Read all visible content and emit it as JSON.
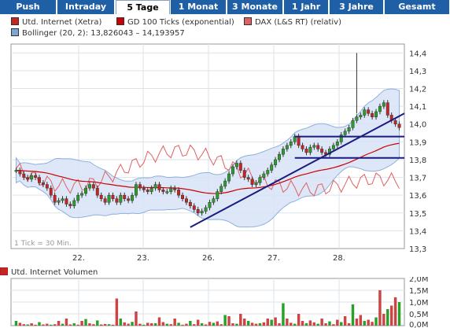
{
  "tabs": [
    {
      "label": "Push",
      "active": false
    },
    {
      "label": "Intraday",
      "active": false
    },
    {
      "label": "5 Tage",
      "active": true
    },
    {
      "label": "1 Monat",
      "active": false
    },
    {
      "label": "3 Monate",
      "active": false
    },
    {
      "label": "1 Jahr",
      "active": false
    },
    {
      "label": "3 Jahre",
      "active": false
    },
    {
      "label": "Gesamt",
      "active": false
    }
  ],
  "legend": {
    "items": [
      {
        "label": "Utd. Internet (Xetra)",
        "color": "#cc2222"
      },
      {
        "label": "GD 100 Ticks (exponential)",
        "color": "#cc0000"
      },
      {
        "label": "DAX (L&S RT) (relativ)",
        "color": "#e06060"
      },
      {
        "label": "Bollinger (20, 2): 13,826043 – 14,193957",
        "color": "#7da6d8"
      }
    ]
  },
  "chart_data": [
    {
      "type": "candlestick",
      "title": "",
      "x_tick_labels": [
        "22.",
        "23.",
        "26.",
        "27.",
        "28."
      ],
      "y_tick_labels": [
        "13,3",
        "13,4",
        "13,5",
        "13,6",
        "13,7",
        "13,8",
        "13,9",
        "14,0",
        "14,1",
        "14,2",
        "14,3",
        "14,4"
      ],
      "ylim": [
        13.3,
        14.45
      ],
      "annotation": "1 Tick = 30 Min.",
      "series": [
        {
          "name": "Utd. Internet (Xetra)",
          "values": [
            13.74,
            13.72,
            13.7,
            13.69,
            13.71,
            13.7,
            13.67,
            13.66,
            13.64,
            13.6,
            13.56,
            13.57,
            13.58,
            13.55,
            13.54,
            13.57,
            13.6,
            13.61,
            13.64,
            13.66,
            13.64,
            13.6,
            13.58,
            13.56,
            13.6,
            13.58,
            13.56,
            13.6,
            13.58,
            13.57,
            13.6,
            13.66,
            13.64,
            13.63,
            13.62,
            13.64,
            13.66,
            13.63,
            13.62,
            13.62,
            13.64,
            13.63,
            13.6,
            13.58,
            13.56,
            13.54,
            13.52,
            13.5,
            13.51,
            13.53,
            13.56,
            13.58,
            13.62,
            13.65,
            13.68,
            13.72,
            13.76,
            13.78,
            13.74,
            13.7,
            13.69,
            13.66,
            13.67,
            13.7,
            13.72,
            13.74,
            13.77,
            13.8,
            13.83,
            13.86,
            13.88,
            13.9,
            13.93,
            13.88,
            13.86,
            13.84,
            13.87,
            13.88,
            13.86,
            13.84,
            13.83,
            13.86,
            13.88,
            13.9,
            13.94,
            13.96,
            13.98,
            14.02,
            14.04,
            14.05,
            14.08,
            14.06,
            14.04,
            14.07,
            14.1,
            14.12,
            14.05,
            14.02,
            14.0,
            13.98
          ]
        },
        {
          "name": "GD 100 Ticks (exponential)",
          "values": [
            13.6,
            13.65
          ]
        },
        {
          "name": "DAX (L&S RT) (relativ)",
          "values": [
            13.75,
            13.55
          ]
        }
      ],
      "bollinger": {
        "label": "Bollinger (20, 2)",
        "lower": 13.826043,
        "upper": 14.193957
      },
      "grid": true,
      "legend_position": "top"
    },
    {
      "type": "bar",
      "title": "Utd. Internet Volumen",
      "y_tick_labels": [
        "0,0M",
        "0,5M",
        "1,0M",
        "1,5M",
        "2,0M"
      ],
      "ylim": [
        0,
        2.0
      ],
      "values": [
        0.2,
        0.12,
        0.06,
        0.05,
        0.1,
        0.04,
        0.15,
        0.05,
        0.08,
        0.04,
        0.06,
        0.2,
        0.08,
        0.3,
        0.05,
        0.1,
        0.04,
        0.2,
        0.28,
        0.1,
        0.06,
        0.22,
        0.05,
        0.07,
        0.06,
        0.04,
        1.15,
        0.3,
        0.14,
        0.08,
        0.16,
        0.6,
        0.08,
        0.04,
        0.12,
        0.1,
        0.1,
        0.35,
        0.15,
        0.08,
        0.06,
        0.3,
        0.12,
        0.04,
        0.08,
        0.2,
        0.06,
        0.25,
        0.1,
        0.05,
        0.16,
        0.12,
        0.18,
        0.06,
        0.45,
        0.4,
        0.1,
        0.08,
        0.5,
        0.3,
        0.2,
        0.12,
        0.08,
        0.1,
        0.14,
        0.3,
        0.25,
        0.35,
        0.1,
        0.95,
        0.3,
        0.12,
        0.08,
        0.5,
        0.2,
        0.1,
        0.22,
        0.14,
        0.08,
        0.3,
        0.1,
        0.18,
        0.06,
        0.25,
        0.15,
        0.4,
        0.1,
        0.9,
        0.3,
        0.45,
        0.2,
        0.25,
        0.16,
        0.35,
        1.5,
        0.5,
        0.7,
        0.85,
        1.2,
        1.0
      ],
      "grid": true
    }
  ],
  "vol_label": "Utd. Internet Volumen"
}
